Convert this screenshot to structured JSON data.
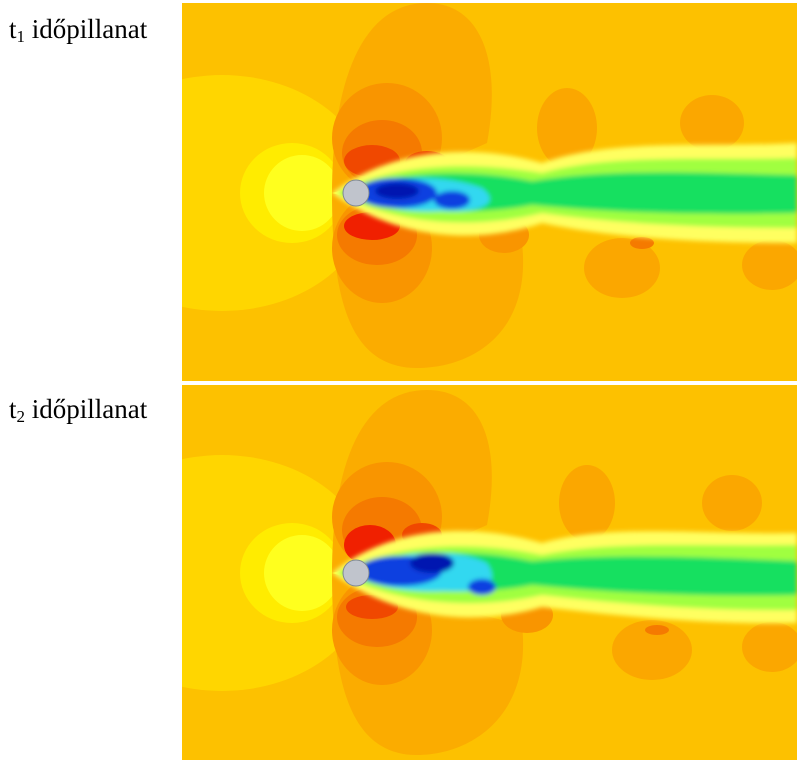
{
  "panels": [
    {
      "label_t": "t",
      "label_sub": "1",
      "label_text": " időpillanat"
    },
    {
      "label_t": "t",
      "label_sub": "2",
      "label_text": " időpillanat"
    }
  ],
  "colors": {
    "background_field": "#fdc100",
    "upstream_stagnation": "#ffe500",
    "stagnation_core": "#ffff1e",
    "low_pressure_outer": "#fb9d00",
    "low_pressure_mid": "#f97d00",
    "low_pressure_core": "#f01800",
    "wake_outer": "#ffff60",
    "wake_mid": "#a0ff40",
    "wake_core": "#18e060",
    "wake_cyan": "#30d8f0",
    "wake_blue": "#1040e0",
    "wake_deep_blue": "#0018b0",
    "cylinder": "#c0c4cc",
    "divider": "#ffffff"
  }
}
